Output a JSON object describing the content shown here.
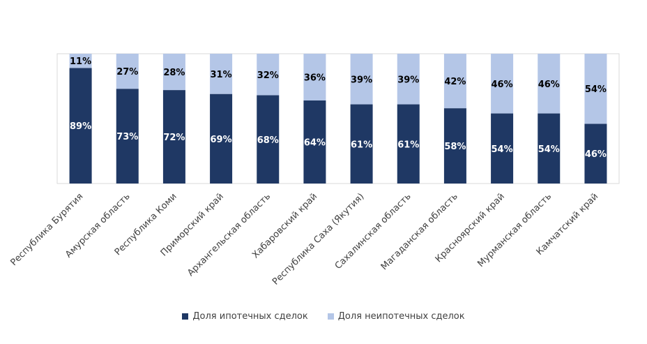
{
  "chart_data": {
    "type": "bar",
    "stacked": true,
    "percent_stacked": true,
    "categories": [
      "Республика Бурятия",
      "Амурская область",
      "Республика Коми",
      "Приморский край",
      "Архангельская область",
      "Хабаровский край",
      "Республика Саха (Якутия)",
      "Сахалинская область",
      "Магаданская область",
      "Красноярский край",
      "Мурманская область",
      "Камчатский край"
    ],
    "series": [
      {
        "name": "Доля ипотечных сделок",
        "color": "#1f3864",
        "values": [
          89,
          73,
          72,
          69,
          68,
          64,
          61,
          61,
          58,
          54,
          54,
          46
        ],
        "labels": [
          "89%",
          "73%",
          "72%",
          "69%",
          "68%",
          "64%",
          "61%",
          "61%",
          "58%",
          "54%",
          "54%",
          "46%"
        ]
      },
      {
        "name": "Доля неипотечных сделок",
        "color": "#b4c6e7",
        "values": [
          11,
          27,
          28,
          31,
          32,
          36,
          39,
          39,
          42,
          46,
          46,
          54
        ],
        "labels": [
          "11%",
          "27%",
          "28%",
          "31%",
          "32%",
          "36%",
          "39%",
          "39%",
          "42%",
          "46%",
          "46%",
          "54%"
        ]
      }
    ],
    "ylim": [
      0,
      100
    ],
    "grid": false,
    "legend_position": "bottom"
  }
}
